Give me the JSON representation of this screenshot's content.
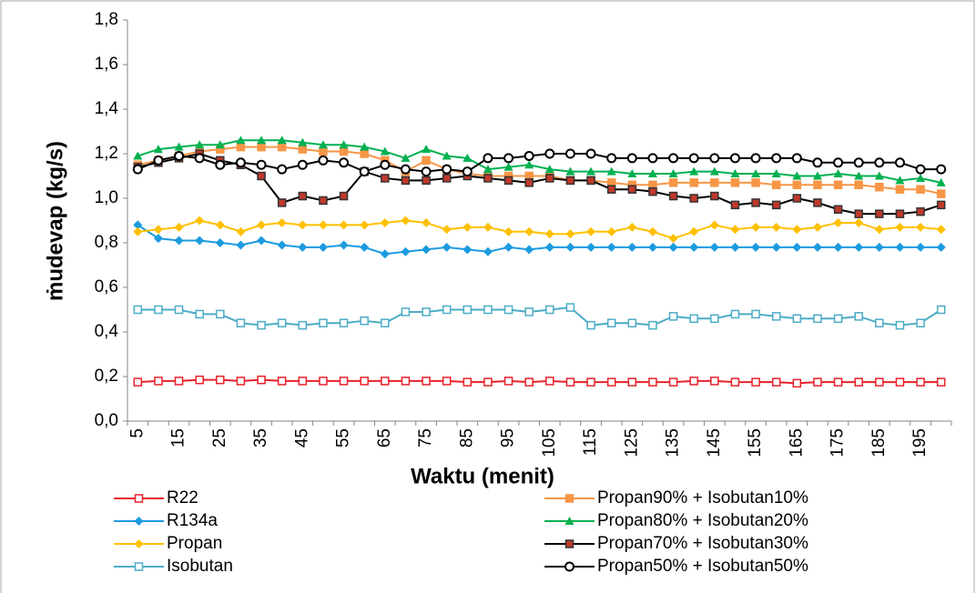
{
  "chart_data": {
    "type": "line",
    "x_label": "Waktu (menit)",
    "y_label": "ṁudevap (kg/s)",
    "categories": [
      "5",
      null,
      "15",
      null,
      "25",
      null,
      "35",
      null,
      "45",
      null,
      "55",
      null,
      "65",
      null,
      "75",
      null,
      "85",
      null,
      "95",
      null,
      "105",
      null,
      "115",
      null,
      "125",
      null,
      "135",
      null,
      "145",
      null,
      "155",
      null,
      "165",
      null,
      "175",
      null,
      "185",
      null,
      "195",
      null
    ],
    "ylim": [
      0,
      1.8
    ],
    "yticks": [
      {
        "value": 0,
        "label": "0,0"
      },
      {
        "value": 0.2,
        "label": "0,2"
      },
      {
        "value": 0.4,
        "label": "0,4"
      },
      {
        "value": 0.6,
        "label": "0,6"
      },
      {
        "value": 0.8,
        "label": "0,8"
      },
      {
        "value": 1.0,
        "label": "1,0"
      },
      {
        "value": 1.2,
        "label": "1,2"
      },
      {
        "value": 1.4,
        "label": "1,4"
      },
      {
        "value": 1.6,
        "label": "1,6"
      },
      {
        "value": 1.8,
        "label": "1,8"
      }
    ],
    "grid": false,
    "legend": "bottom",
    "series": [
      {
        "name": "R22",
        "color": "#e8212b",
        "marker": "square-open",
        "values": [
          0.175,
          0.18,
          0.18,
          0.185,
          0.185,
          0.18,
          0.185,
          0.18,
          0.18,
          0.18,
          0.18,
          0.18,
          0.18,
          0.18,
          0.18,
          0.18,
          0.175,
          0.175,
          0.18,
          0.175,
          0.18,
          0.175,
          0.175,
          0.175,
          0.175,
          0.175,
          0.175,
          0.18,
          0.18,
          0.175,
          0.175,
          0.175,
          0.17,
          0.175,
          0.175,
          0.175,
          0.175,
          0.175,
          0.175,
          0.175
        ]
      },
      {
        "name": "R134a",
        "color": "#1c9be0",
        "marker": "diamond",
        "values": [
          0.88,
          0.82,
          0.81,
          0.81,
          0.8,
          0.79,
          0.81,
          0.79,
          0.78,
          0.78,
          0.79,
          0.78,
          0.75,
          0.76,
          0.77,
          0.78,
          0.77,
          0.76,
          0.78,
          0.77,
          0.78,
          0.78,
          0.78,
          0.78,
          0.78,
          0.78,
          0.78,
          0.78,
          0.78,
          0.78,
          0.78,
          0.78,
          0.78,
          0.78,
          0.78,
          0.78,
          0.78,
          0.78,
          0.78,
          0.78
        ]
      },
      {
        "name": "Propan",
        "color": "#ffc000",
        "marker": "diamond",
        "values": [
          0.85,
          0.86,
          0.87,
          0.9,
          0.88,
          0.85,
          0.88,
          0.89,
          0.88,
          0.88,
          0.88,
          0.88,
          0.89,
          0.9,
          0.89,
          0.86,
          0.87,
          0.87,
          0.85,
          0.85,
          0.84,
          0.84,
          0.85,
          0.85,
          0.87,
          0.85,
          0.82,
          0.85,
          0.88,
          0.86,
          0.87,
          0.87,
          0.86,
          0.87,
          0.89,
          0.89,
          0.86,
          0.87,
          0.87,
          0.86
        ]
      },
      {
        "name": "Isobutan",
        "color": "#4bacc6",
        "marker": "square-open",
        "values": [
          0.5,
          0.5,
          0.5,
          0.48,
          0.48,
          0.44,
          0.43,
          0.44,
          0.43,
          0.44,
          0.44,
          0.45,
          0.44,
          0.49,
          0.49,
          0.5,
          0.5,
          0.5,
          0.5,
          0.49,
          0.5,
          0.51,
          0.43,
          0.44,
          0.44,
          0.43,
          0.47,
          0.46,
          0.46,
          0.48,
          0.48,
          0.47,
          0.46,
          0.46,
          0.46,
          0.47,
          0.44,
          0.43,
          0.44,
          0.5
        ]
      },
      {
        "name": "Propan90% + Isobutan10%",
        "color": "#f79646",
        "marker": "square",
        "values": [
          1.15,
          1.17,
          1.19,
          1.21,
          1.22,
          1.23,
          1.23,
          1.23,
          1.22,
          1.21,
          1.21,
          1.2,
          1.17,
          1.12,
          1.17,
          1.13,
          1.11,
          1.1,
          1.1,
          1.1,
          1.1,
          1.08,
          1.08,
          1.07,
          1.06,
          1.06,
          1.07,
          1.07,
          1.07,
          1.07,
          1.07,
          1.06,
          1.06,
          1.06,
          1.06,
          1.06,
          1.05,
          1.04,
          1.04,
          1.02
        ]
      },
      {
        "name": "Propan80% + Isobutan20%",
        "color": "#00b050",
        "marker": "triangle",
        "values": [
          1.19,
          1.22,
          1.23,
          1.24,
          1.24,
          1.26,
          1.26,
          1.26,
          1.25,
          1.24,
          1.24,
          1.23,
          1.21,
          1.18,
          1.22,
          1.19,
          1.18,
          1.13,
          1.14,
          1.15,
          1.13,
          1.12,
          1.12,
          1.12,
          1.11,
          1.11,
          1.11,
          1.12,
          1.12,
          1.11,
          1.11,
          1.11,
          1.1,
          1.1,
          1.11,
          1.1,
          1.1,
          1.08,
          1.09,
          1.07
        ]
      },
      {
        "name": "Propan70% + Isobutan30%",
        "color": "#000000",
        "marker": "square",
        "marker_color": "#c0392b",
        "values": [
          1.14,
          1.16,
          1.18,
          1.2,
          1.17,
          1.15,
          1.1,
          0.98,
          1.01,
          0.99,
          1.01,
          1.12,
          1.09,
          1.08,
          1.08,
          1.09,
          1.1,
          1.09,
          1.08,
          1.07,
          1.09,
          1.08,
          1.08,
          1.04,
          1.04,
          1.03,
          1.01,
          1.0,
          1.01,
          0.97,
          0.98,
          0.97,
          1.0,
          0.98,
          0.95,
          0.93,
          0.93,
          0.93,
          0.94,
          0.97
        ]
      },
      {
        "name": "Propan50% + Isobutan50%",
        "color": "#000000",
        "marker": "circle-open",
        "values": [
          1.13,
          1.17,
          1.19,
          1.18,
          1.15,
          1.16,
          1.15,
          1.13,
          1.15,
          1.17,
          1.16,
          1.12,
          1.15,
          1.13,
          1.12,
          1.13,
          1.12,
          1.18,
          1.18,
          1.19,
          1.2,
          1.2,
          1.2,
          1.18,
          1.18,
          1.18,
          1.18,
          1.18,
          1.18,
          1.18,
          1.18,
          1.18,
          1.18,
          1.16,
          1.16,
          1.16,
          1.16,
          1.16,
          1.13,
          1.13
        ]
      }
    ]
  }
}
